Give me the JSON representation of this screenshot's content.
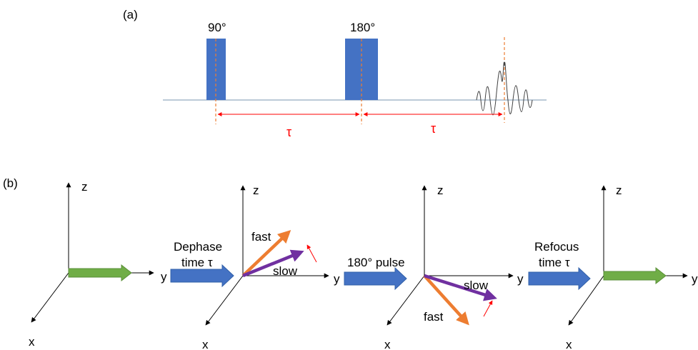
{
  "panel_a": {
    "label": "(a)",
    "pulse_90_label": "90°",
    "pulse_180_label": "180°",
    "tau_1": "τ",
    "tau_2": "τ"
  },
  "panel_b": {
    "label": "(b)",
    "axes": [
      {
        "z": "z",
        "y": "y",
        "x": "x"
      },
      {
        "z": "z",
        "y": "y",
        "x": "x"
      },
      {
        "z": "z",
        "y": "y",
        "x": "x"
      },
      {
        "z": "z",
        "y": "y",
        "x": "x"
      }
    ],
    "step1": {
      "line1": "Dephase",
      "line2": "time τ"
    },
    "step2": {
      "line1": "180° pulse"
    },
    "step3": {
      "line1": "Refocus",
      "line2": "time τ"
    },
    "frame2": {
      "fast": "fast",
      "slow": "slow"
    },
    "frame3": {
      "fast": "fast",
      "slow": "slow"
    }
  },
  "colors": {
    "pulse": "#4472c4",
    "magnetization": "#70ad47",
    "fast": "#ed7d31",
    "slow": "#7030a0",
    "tau": "#ff0000",
    "marker": "#ed7d31"
  }
}
